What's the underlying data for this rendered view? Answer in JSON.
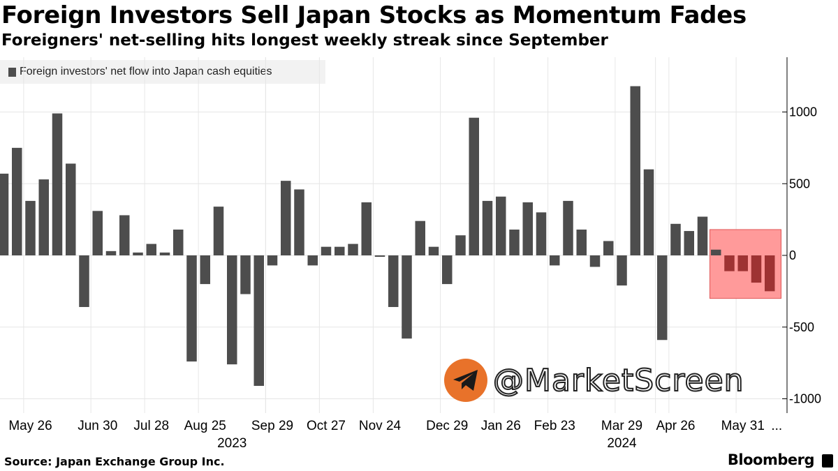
{
  "title": "Foreign Investors Sell Japan Stocks as Momentum Fades",
  "subtitle": "Foreigners' net-selling hits longest weekly streak since September",
  "source": "Source: Japan Exchange Group Inc.",
  "brand": "Bloomberg",
  "watermark": "@MarketScreen",
  "colors": {
    "bar": "#4d4d4d",
    "highlight_bar": "#9e3333",
    "highlight_box": "#ff9a9a",
    "grid": "#e6e6e6"
  },
  "chart_data": {
    "type": "bar",
    "legend": "Foreign investors' net flow into Japan cash equities",
    "values": [
      570,
      750,
      380,
      530,
      990,
      640,
      -360,
      310,
      30,
      280,
      20,
      80,
      20,
      180,
      -740,
      -200,
      340,
      -760,
      -270,
      -910,
      -70,
      520,
      460,
      -70,
      60,
      60,
      80,
      370,
      -10,
      -360,
      -580,
      240,
      60,
      -200,
      140,
      960,
      380,
      410,
      180,
      370,
      300,
      -70,
      380,
      180,
      -80,
      100,
      -210,
      1180,
      600,
      -590,
      220,
      170,
      270,
      40,
      -110,
      -110,
      -190,
      -250
    ],
    "highlight_start_index": 53,
    "y_ticks": [
      1000,
      500,
      0,
      -500,
      -1000
    ],
    "ylim": [
      -1000,
      1370
    ],
    "x_ticks": [
      {
        "label": "May 26",
        "index": 2
      },
      {
        "label": "Jun 30",
        "index": 7
      },
      {
        "label": "Jul 28",
        "index": 11
      },
      {
        "label": "Aug 25",
        "index": 15
      },
      {
        "label": "Sep 29",
        "index": 20
      },
      {
        "label": "Oct 27",
        "index": 24
      },
      {
        "label": "Nov 24",
        "index": 28
      },
      {
        "label": "Dec 29",
        "index": 33
      },
      {
        "label": "Jan 26",
        "index": 37
      },
      {
        "label": "Feb 23",
        "index": 41
      },
      {
        "label": "Mar 29",
        "index": 46
      },
      {
        "label": "Apr 26",
        "index": 50
      },
      {
        "label": "May 31",
        "index": 55
      }
    ],
    "year_labels": [
      {
        "label": "2023",
        "index": 17
      },
      {
        "label": "2024",
        "index": 46
      }
    ],
    "ellipsis": "..."
  }
}
